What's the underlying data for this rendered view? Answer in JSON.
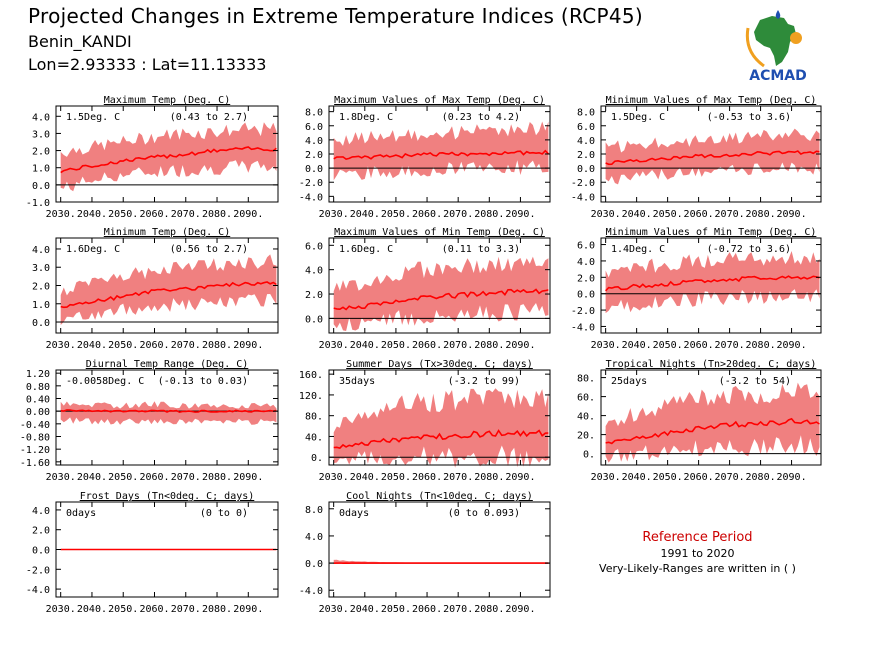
{
  "header": {
    "title": "Projected Changes in Extreme Temperature Indices (RCP45)",
    "station": "Benin_KANDI",
    "coords": "Lon=2.93333 : Lat=11.13333"
  },
  "logo": {
    "text": "ACMAD",
    "colors": {
      "blue": "#1f4fb0",
      "green": "#2e8b3a",
      "orange": "#f0a020"
    }
  },
  "reference": {
    "title": "Reference Period",
    "years": "1991 to 2020",
    "note": "Very-Likely-Ranges are written in ( )"
  },
  "colors": {
    "band": "#f08080",
    "mean": "#ff0000",
    "zero": "#000000",
    "axis": "#000000"
  },
  "chart_data": [
    {
      "type": "area",
      "title": "Maximum Temp (Deg. C)",
      "value_label": "1.5Deg. C",
      "range_label": "(0.43 to 2.7)",
      "x": [
        2030,
        2040,
        2050,
        2060,
        2070,
        2080,
        2090
      ],
      "x_ticks": [
        "2030.",
        "2040.",
        "2050.",
        "2060.",
        "2070.",
        "2080.",
        "2090."
      ],
      "ylim": [
        -1.0,
        4.6
      ],
      "yticks": [
        "4.0",
        "3.0",
        "2.0",
        "1.0",
        "0.0",
        "-1.0"
      ],
      "ytick_values": [
        4,
        3,
        2,
        1,
        0,
        -1
      ],
      "mean": [
        0.8,
        1.1,
        1.4,
        1.6,
        1.8,
        2.0,
        2.1
      ],
      "lower": [
        -0.1,
        0.4,
        0.7,
        0.9,
        1.0,
        1.1,
        1.2
      ],
      "upper": [
        1.8,
        2.1,
        2.4,
        2.7,
        2.9,
        3.0,
        3.1
      ]
    },
    {
      "type": "area",
      "title": "Maximum Values of Max Temp (Deg. C)",
      "value_label": "1.8Deg. C",
      "range_label": "(0.23 to 4.2)",
      "x": [
        2030,
        2040,
        2050,
        2060,
        2070,
        2080,
        2090
      ],
      "x_ticks": [
        "2030.",
        "2040.",
        "2050.",
        "2060.",
        "2070.",
        "2080.",
        "2090."
      ],
      "ylim": [
        -4.8,
        8.8
      ],
      "yticks": [
        "8.0",
        "6.0",
        "4.0",
        "2.0",
        "0.0",
        "-2.0",
        "-4.0"
      ],
      "ytick_values": [
        8,
        6,
        4,
        2,
        0,
        -2,
        -4
      ],
      "mean": [
        1.4,
        1.5,
        1.7,
        1.9,
        2.0,
        2.1,
        2.2
      ],
      "lower": [
        -0.6,
        -0.4,
        -0.2,
        0.0,
        0.2,
        0.3,
        0.4
      ],
      "upper": [
        3.6,
        4.0,
        4.4,
        4.6,
        4.8,
        5.0,
        5.2
      ]
    },
    {
      "type": "area",
      "title": "Minimum Values of Max Temp (Deg. C)",
      "value_label": "1.5Deg. C",
      "range_label": "(-0.53 to 3.6)",
      "x": [
        2030,
        2040,
        2050,
        2060,
        2070,
        2080,
        2090
      ],
      "x_ticks": [
        "2030.",
        "2040.",
        "2050.",
        "2060.",
        "2070.",
        "2080.",
        "2090."
      ],
      "ylim": [
        -4.8,
        8.8
      ],
      "yticks": [
        "8.0",
        "6.0",
        "4.0",
        "2.0",
        "0.0",
        "-2.0",
        "-4.0"
      ],
      "ytick_values": [
        8,
        6,
        4,
        2,
        0,
        -2,
        -4
      ],
      "mean": [
        0.7,
        1.1,
        1.4,
        1.7,
        1.9,
        2.1,
        2.2
      ],
      "lower": [
        -1.4,
        -1.0,
        -0.6,
        -0.3,
        0.0,
        0.1,
        0.2
      ],
      "upper": [
        2.6,
        3.0,
        3.4,
        3.7,
        4.0,
        4.2,
        4.4
      ]
    },
    {
      "type": "area",
      "title": "Minimum Temp (Deg. C)",
      "value_label": "1.6Deg. C",
      "range_label": "(0.56 to 2.7)",
      "x": [
        2030,
        2040,
        2050,
        2060,
        2070,
        2080,
        2090
      ],
      "x_ticks": [
        "2030.",
        "2040.",
        "2050.",
        "2060.",
        "2070.",
        "2080.",
        "2090."
      ],
      "ylim": [
        -0.6,
        4.6
      ],
      "yticks": [
        "4.0",
        "3.0",
        "2.0",
        "1.0",
        "0.0"
      ],
      "ytick_values": [
        4,
        3,
        2,
        1,
        0
      ],
      "mean": [
        0.8,
        1.1,
        1.4,
        1.7,
        1.8,
        2.0,
        2.1
      ],
      "lower": [
        0.2,
        0.5,
        0.8,
        1.0,
        1.1,
        1.2,
        1.3
      ],
      "upper": [
        1.6,
        2.0,
        2.4,
        2.7,
        2.9,
        3.0,
        3.2
      ]
    },
    {
      "type": "area",
      "title": "Maximum Values of Min Temp (Deg. C)",
      "value_label": "1.6Deg. C",
      "range_label": "(0.11 to 3.3)",
      "x": [
        2030,
        2040,
        2050,
        2060,
        2070,
        2080,
        2090
      ],
      "x_ticks": [
        "2030.",
        "2040.",
        "2050.",
        "2060.",
        "2070.",
        "2080.",
        "2090."
      ],
      "ylim": [
        -1.2,
        6.6
      ],
      "yticks": [
        "6.0",
        "4.0",
        "2.0",
        "0.0"
      ],
      "ytick_values": [
        6,
        4,
        2,
        0
      ],
      "mean": [
        0.7,
        1.0,
        1.4,
        1.7,
        1.9,
        2.1,
        2.2
      ],
      "lower": [
        -0.4,
        -0.1,
        0.2,
        0.4,
        0.6,
        0.7,
        0.8
      ],
      "upper": [
        2.2,
        2.8,
        3.4,
        3.8,
        4.0,
        4.1,
        4.2
      ]
    },
    {
      "type": "area",
      "title": "Minimum Values of Min Temp (Deg. C)",
      "value_label": "1.4Deg. C",
      "range_label": "(-0.72 to 3.6)",
      "x": [
        2030,
        2040,
        2050,
        2060,
        2070,
        2080,
        2090
      ],
      "x_ticks": [
        "2030.",
        "2040.",
        "2050.",
        "2060.",
        "2070.",
        "2080.",
        "2090."
      ],
      "ylim": [
        -4.8,
        6.8
      ],
      "yticks": [
        "6.0",
        "4.0",
        "2.0",
        "0.0",
        "-2.0",
        "-4.0"
      ],
      "ytick_values": [
        6,
        4,
        2,
        0,
        -2,
        -4
      ],
      "mean": [
        0.5,
        0.9,
        1.2,
        1.5,
        1.7,
        1.9,
        2.0
      ],
      "lower": [
        -1.4,
        -1.1,
        -0.7,
        -0.4,
        -0.2,
        -0.1,
        0.0
      ],
      "upper": [
        2.4,
        2.9,
        3.4,
        3.7,
        3.9,
        4.0,
        4.1
      ]
    },
    {
      "type": "area",
      "title": "Diurnal Temp Range (Deg. C)",
      "value_label": "-0.0058Deg. C",
      "range_label": "(-0.13 to 0.03)",
      "x": [
        2030,
        2040,
        2050,
        2060,
        2070,
        2080,
        2090
      ],
      "x_ticks": [
        "2030.",
        "2040.",
        "2050.",
        "2060.",
        "2070.",
        "2080.",
        "2090."
      ],
      "ylim": [
        -1.7,
        1.3
      ],
      "yticks": [
        "1.20",
        "0.80",
        "0.40",
        "0.00",
        "-0.40",
        "-0.80",
        "-1.20",
        "-1.60"
      ],
      "ytick_values": [
        1.2,
        0.8,
        0.4,
        0,
        -0.4,
        -0.8,
        -1.2,
        -1.6
      ],
      "mean": [
        0.02,
        0.0,
        -0.01,
        0.0,
        -0.01,
        0.0,
        0.0
      ],
      "lower": [
        -0.25,
        -0.3,
        -0.3,
        -0.28,
        -0.3,
        -0.3,
        -0.3
      ],
      "upper": [
        0.2,
        0.15,
        0.15,
        0.18,
        0.15,
        0.15,
        0.15
      ]
    },
    {
      "type": "area",
      "title": "Summer Days (Tx>30deg. C; days)",
      "value_label": "35days",
      "range_label": "(-3.2 to 99)",
      "x": [
        2030,
        2040,
        2050,
        2060,
        2070,
        2080,
        2090
      ],
      "x_ticks": [
        "2030.",
        "2040.",
        "2050.",
        "2060.",
        "2070.",
        "2080.",
        "2090."
      ],
      "ylim": [
        -15,
        168
      ],
      "yticks": [
        "160.",
        "120.",
        "80.",
        "40.",
        "0."
      ],
      "ytick_values": [
        160,
        120,
        80,
        40,
        0
      ],
      "mean": [
        18,
        27,
        33,
        38,
        42,
        45,
        47
      ],
      "lower": [
        2,
        4,
        5,
        6,
        7,
        8,
        8
      ],
      "upper": [
        55,
        78,
        92,
        100,
        105,
        108,
        110
      ]
    },
    {
      "type": "area",
      "title": "Tropical Nights (Tn>20deg. C; days)",
      "value_label": "25days",
      "range_label": "(-3.2 to 54)",
      "x": [
        2030,
        2040,
        2050,
        2060,
        2070,
        2080,
        2090
      ],
      "x_ticks": [
        "2030.",
        "2040.",
        "2050.",
        "2060.",
        "2070.",
        "2080.",
        "2090."
      ],
      "ylim": [
        -12,
        88
      ],
      "yticks": [
        "80.",
        "60.",
        "40.",
        "20.",
        "0."
      ],
      "ytick_values": [
        80,
        60,
        40,
        20,
        0
      ],
      "mean": [
        10,
        16,
        22,
        26,
        30,
        32,
        34
      ],
      "lower": [
        -2,
        2,
        5,
        8,
        10,
        11,
        12
      ],
      "upper": [
        30,
        40,
        48,
        54,
        58,
        60,
        62
      ]
    },
    {
      "type": "area",
      "title": "Frost Days (Tn<0deg. C; days)",
      "value_label": "0days",
      "range_label": "(0 to 0)",
      "x": [
        2030,
        2040,
        2050,
        2060,
        2070,
        2080,
        2090
      ],
      "x_ticks": [
        "2030.",
        "2040.",
        "2050.",
        "2060.",
        "2070.",
        "2080.",
        "2090."
      ],
      "ylim": [
        -4.8,
        4.8
      ],
      "yticks": [
        "4.0",
        "2.0",
        "0.0",
        "-2.0",
        "-4.0"
      ],
      "ytick_values": [
        4,
        2,
        0,
        -2,
        -4
      ],
      "mean": [
        0,
        0,
        0,
        0,
        0,
        0,
        0
      ],
      "lower": [
        0,
        0,
        0,
        0,
        0,
        0,
        0
      ],
      "upper": [
        0,
        0,
        0,
        0,
        0,
        0,
        0
      ]
    },
    {
      "type": "area",
      "title": "Cool Nights (Tn<10deg. C; days)",
      "value_label": "0days",
      "range_label": "(0 to 0.093)",
      "x": [
        2030,
        2040,
        2050,
        2060,
        2070,
        2080,
        2090
      ],
      "x_ticks": [
        "2030.",
        "2040.",
        "2050.",
        "2060.",
        "2070.",
        "2080.",
        "2090."
      ],
      "ylim": [
        -5.0,
        9.0
      ],
      "yticks": [
        "8.0",
        "4.0",
        "0.0",
        "-4.0"
      ],
      "ytick_values": [
        8,
        4,
        0,
        -4
      ],
      "mean": [
        0,
        0,
        0,
        0,
        0,
        0,
        0
      ],
      "lower": [
        0,
        0,
        0,
        0,
        0,
        0,
        0
      ],
      "upper": [
        0.4,
        0.2,
        0.1,
        0,
        0,
        0,
        0
      ]
    }
  ]
}
